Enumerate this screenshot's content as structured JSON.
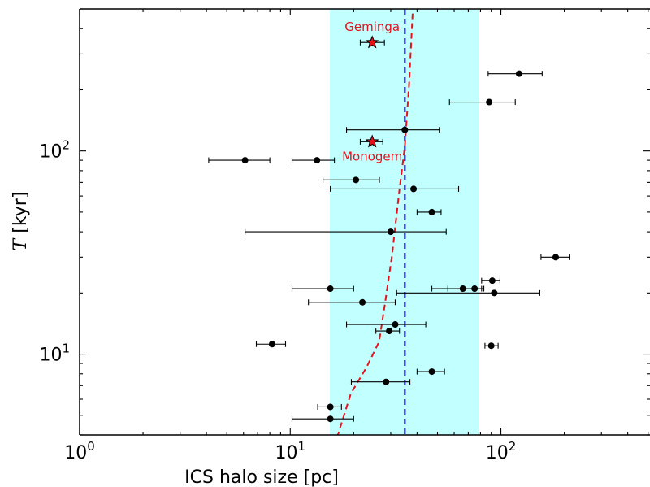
{
  "chart_data": {
    "type": "scatter",
    "title": "",
    "xlabel": "ICS halo size [pc]",
    "ylabel_symbol": "T",
    "ylabel_unit": " [kyr]",
    "x_scale": "log",
    "y_scale": "log",
    "xlim": [
      1,
      510
    ],
    "ylim": [
      4.0,
      500
    ],
    "x_major_ticks": [
      {
        "value": 1,
        "base": "10",
        "exp": "0"
      },
      {
        "value": 10,
        "base": "10",
        "exp": "1"
      },
      {
        "value": 100,
        "base": "10",
        "exp": "2"
      }
    ],
    "y_major_ticks": [
      {
        "value": 10,
        "base": "10",
        "exp": "1"
      },
      {
        "value": 100,
        "base": "10",
        "exp": "2"
      }
    ],
    "shaded_band": {
      "x_range": [
        15.4,
        79
      ],
      "color": "#c2ffff"
    },
    "vertical_line": {
      "x": 35,
      "color": "#0000cc",
      "style": "dashed"
    },
    "model_curve": {
      "color": "#e8101a",
      "style": "dashed",
      "points": [
        [
          16.7,
          3.9
        ],
        [
          19.4,
          6.4
        ],
        [
          23,
          8.6
        ],
        [
          26.4,
          11.5
        ],
        [
          28,
          17
        ],
        [
          30.4,
          30.5
        ],
        [
          32.9,
          63
        ],
        [
          35,
          105
        ],
        [
          36.6,
          208
        ],
        [
          38.2,
          500
        ]
      ]
    },
    "highlighted_pulsars": [
      {
        "name": "Geminga",
        "x": 24.5,
        "y": 342,
        "xerr": [
          21.5,
          28
        ]
      },
      {
        "name": "Monogem",
        "x": 24.5,
        "y": 111,
        "xerr": [
          21.5,
          27.5
        ]
      }
    ],
    "points": [
      {
        "x": 6.1,
        "y": 90,
        "xerr": [
          4.1,
          8.0
        ]
      },
      {
        "x": 13.4,
        "y": 90,
        "xerr": [
          10.2,
          16.2
        ]
      },
      {
        "x": 20.5,
        "y": 72,
        "xerr": [
          14.3,
          26.5
        ]
      },
      {
        "x": 38.5,
        "y": 65,
        "xerr": [
          15.5,
          63
        ]
      },
      {
        "x": 47,
        "y": 50,
        "xerr": [
          40,
          52
        ]
      },
      {
        "x": 30,
        "y": 40,
        "xerr": [
          6.1,
          55
        ]
      },
      {
        "x": 35,
        "y": 127,
        "xerr": [
          18.5,
          51
        ]
      },
      {
        "x": 88,
        "y": 174,
        "xerr": [
          57,
          117
        ]
      },
      {
        "x": 122,
        "y": 240,
        "xerr": [
          87,
          157
        ]
      },
      {
        "x": 182,
        "y": 30,
        "xerr": [
          155,
          211
        ]
      },
      {
        "x": 91,
        "y": 23,
        "xerr": [
          81,
          99
        ]
      },
      {
        "x": 15.5,
        "y": 21,
        "xerr": [
          10.2,
          20
        ]
      },
      {
        "x": 66,
        "y": 21,
        "xerr": [
          47,
          81
        ]
      },
      {
        "x": 75,
        "y": 21,
        "xerr": [
          56,
          83
        ]
      },
      {
        "x": 93,
        "y": 20,
        "xerr": [
          32,
          153
        ]
      },
      {
        "x": 22,
        "y": 18,
        "xerr": [
          12.2,
          31.5
        ]
      },
      {
        "x": 31.5,
        "y": 14,
        "xerr": [
          18.5,
          44
        ]
      },
      {
        "x": 29.5,
        "y": 13,
        "xerr": [
          25.5,
          33
        ]
      },
      {
        "x": 8.2,
        "y": 11.2,
        "xerr": [
          6.9,
          9.5
        ]
      },
      {
        "x": 90,
        "y": 11,
        "xerr": [
          84,
          97
        ]
      },
      {
        "x": 47,
        "y": 8.2,
        "xerr": [
          40,
          54
        ]
      },
      {
        "x": 28.5,
        "y": 7.3,
        "xerr": [
          19.5,
          37
        ]
      },
      {
        "x": 15.5,
        "y": 5.5,
        "xerr": [
          13.5,
          17.5
        ]
      },
      {
        "x": 15.5,
        "y": 4.8,
        "xerr": [
          10.2,
          20
        ]
      }
    ],
    "grid": false,
    "legend": "none"
  }
}
